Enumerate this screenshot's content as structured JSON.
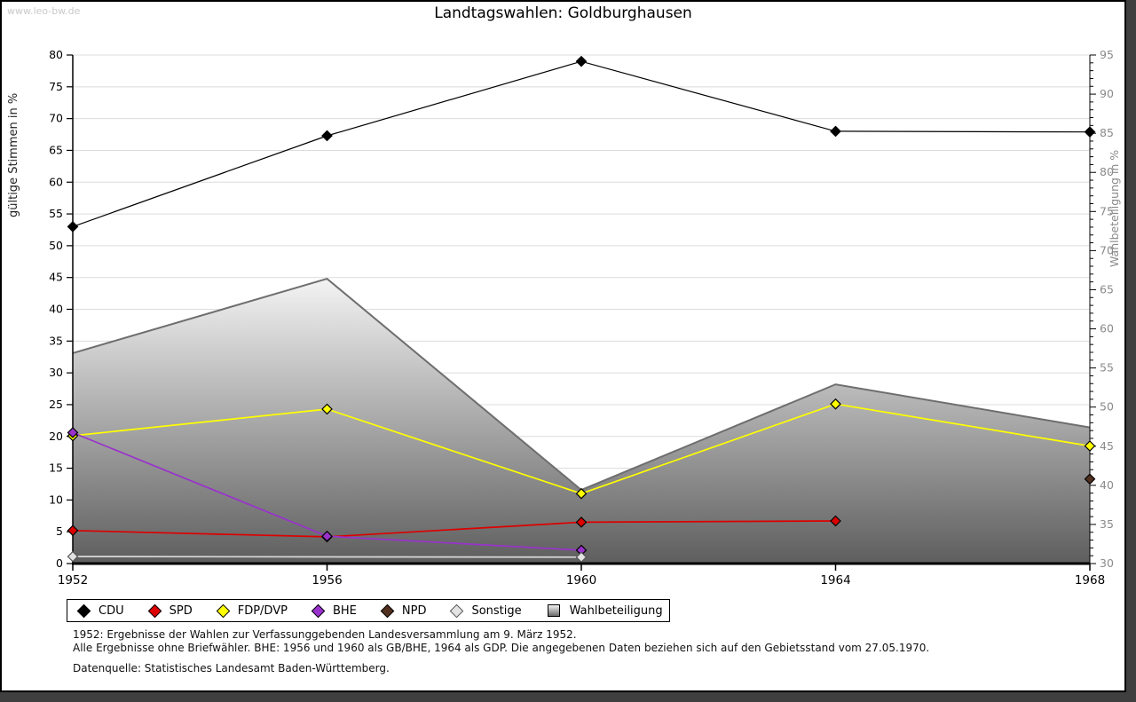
{
  "watermark": "www.leo-bw.de",
  "header": {
    "title": "Landtagswahlen: Goldburghausen"
  },
  "footnotes": {
    "line1": "1952: Ergebnisse der Wahlen zur Verfassunggebenden Landesversammlung am 9. März 1952.",
    "line2": "Alle Ergebnisse ohne Briefwähler. BHE: 1956 und 1960 als GB/BHE, 1964 als GDP. Die angegebenen Daten beziehen sich auf den Gebietsstand vom 27.05.1970.",
    "source": "Datenquelle: Statistisches Landesamt Baden-Württemberg."
  },
  "colors": {
    "cdu": "#000000",
    "spd": "#dd0000",
    "fdp": "#ffff00",
    "bhe": "#9932cc",
    "npd": "#52301f",
    "sonstige": "#e3e3e3",
    "area_top": "#fafafa",
    "area_bottom": "#5e5e5e",
    "area_edge": "#6e6e6e",
    "grid": "#dcdcdc",
    "right_axis_text": "#8a8a8a",
    "shadow_strip": "#3f3f3f"
  },
  "chart_data": {
    "type": "line",
    "title": "Landtagswahlen: Goldburghausen",
    "x_categories": [
      "1952",
      "1956",
      "1960",
      "1964",
      "1968"
    ],
    "left_axis": {
      "label": "gültige Stimmen in %",
      "min": 0,
      "max": 80,
      "ticks": [
        0,
        5,
        10,
        15,
        20,
        25,
        30,
        35,
        40,
        45,
        50,
        55,
        60,
        65,
        70,
        75,
        80
      ]
    },
    "right_axis": {
      "label": "Wahlbeteiligung in %",
      "min": 30,
      "max": 95,
      "ticks": [
        30,
        35,
        40,
        45,
        50,
        55,
        60,
        65,
        70,
        75,
        80,
        85,
        90,
        95
      ],
      "minor_tick_step": 1
    },
    "grid": "horizontal-only",
    "legend_position": "bottom",
    "series": [
      {
        "name": "CDU",
        "type": "line",
        "axis": "left",
        "color": "#000000",
        "values": [
          53.0,
          67.3,
          79.0,
          68.0,
          67.9
        ]
      },
      {
        "name": "SPD",
        "type": "line",
        "axis": "left",
        "color": "#dd0000",
        "values": [
          5.2,
          4.2,
          6.5,
          6.7,
          null
        ]
      },
      {
        "name": "FDP/DVP",
        "type": "line",
        "axis": "left",
        "color": "#ffff00",
        "values": [
          20.1,
          24.3,
          11.0,
          25.1,
          18.5
        ]
      },
      {
        "name": "BHE",
        "type": "line",
        "axis": "left",
        "color": "#9932cc",
        "values": [
          20.6,
          4.3,
          2.1,
          null,
          null
        ]
      },
      {
        "name": "NPD",
        "type": "line",
        "axis": "left",
        "color": "#52301f",
        "values": [
          null,
          null,
          null,
          null,
          13.3
        ]
      },
      {
        "name": "Sonstige",
        "type": "line",
        "axis": "left",
        "color": "#e3e3e3",
        "values": [
          1.1,
          null,
          1.0,
          null,
          null
        ]
      },
      {
        "name": "Wahlbeteiligung",
        "type": "area",
        "axis": "right",
        "color": "#bdbdbd",
        "values": [
          56.9,
          66.4,
          39.4,
          52.9,
          47.4
        ]
      }
    ]
  }
}
